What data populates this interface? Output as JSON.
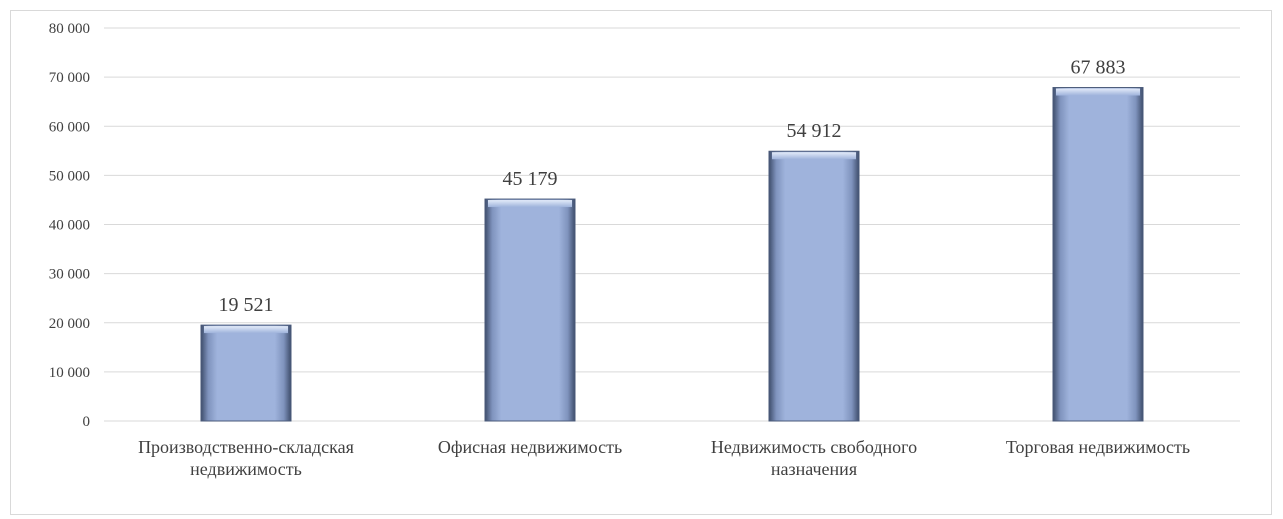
{
  "chart_data": {
    "type": "bar",
    "categories": [
      [
        "Производственно-складская",
        "недвижимость"
      ],
      [
        "Офисная недвижимость"
      ],
      [
        "Недвижимость свободного",
        "назначения"
      ],
      [
        "Торговая недвижимость"
      ]
    ],
    "values": [
      19521,
      45179,
      54912,
      67883
    ],
    "data_labels": [
      "19 521",
      "45 179",
      "54 912",
      "67 883"
    ],
    "y_ticks": [
      "0",
      "10 000",
      "20 000",
      "30 000",
      "40 000",
      "50 000",
      "60 000",
      "70 000",
      "80 000"
    ],
    "ylim": [
      0,
      80000
    ],
    "grid": true,
    "legend": "none",
    "colors": {
      "bar_fill": "#9fb3dc",
      "bar_edge": "#4a5a7a",
      "bar_top": "#c8d6f0",
      "grid": "#d9d9d9",
      "text": "#404040"
    }
  }
}
